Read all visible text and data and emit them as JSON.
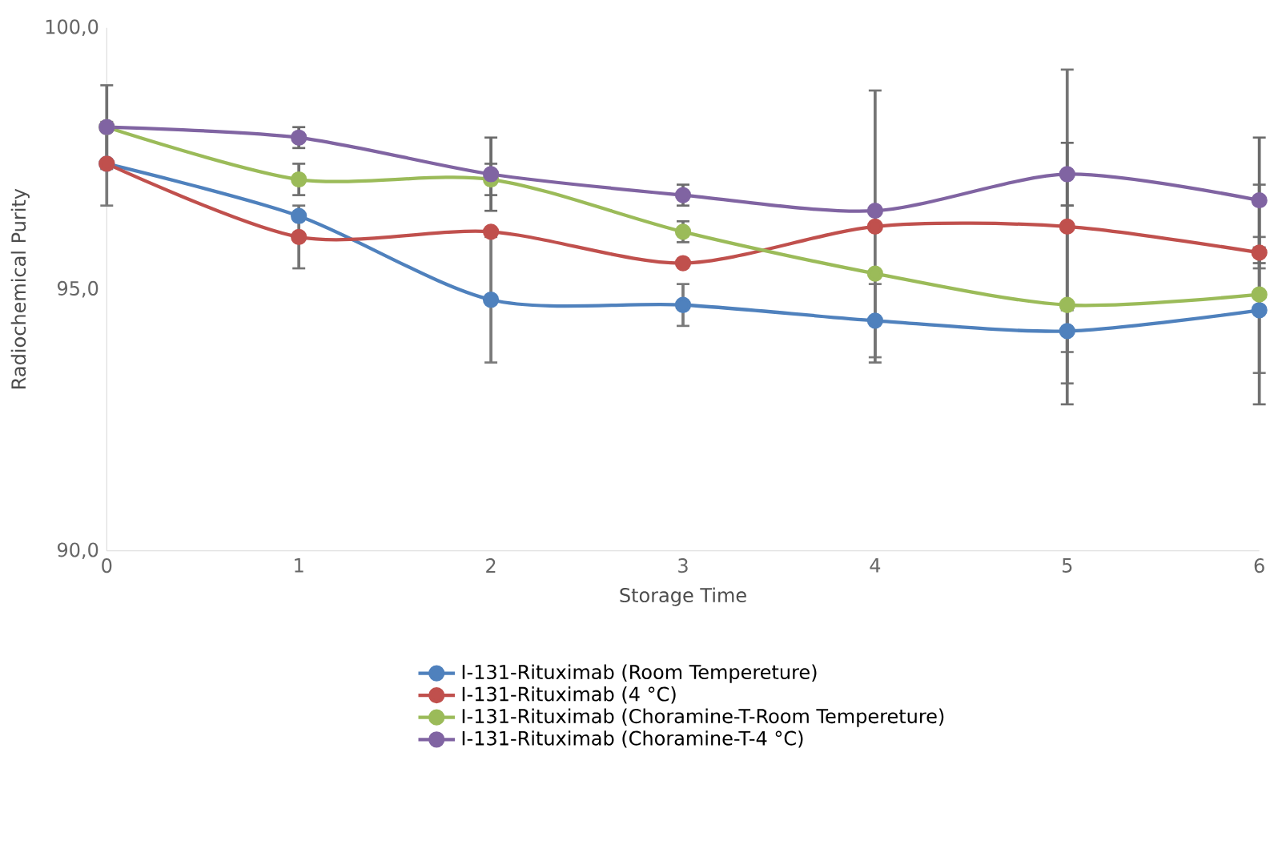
{
  "chart_data": {
    "type": "line",
    "xlabel": "Storage Time",
    "ylabel": "Radiochemical Purity",
    "x": [
      0,
      1,
      2,
      3,
      4,
      5,
      6
    ],
    "xlim": [
      0,
      6
    ],
    "xticks": [
      0,
      1,
      2,
      3,
      4,
      5,
      6
    ],
    "ylim": [
      90,
      100
    ],
    "yticks": [
      {
        "value": 90,
        "label": "90,0"
      },
      {
        "value": 95,
        "label": "95,0"
      },
      {
        "value": 100,
        "label": "100,0"
      }
    ],
    "grid": false,
    "legend": "bottom",
    "marker": "circle",
    "line_style": "solid",
    "series": [
      {
        "name": "I-131-Rituximab (Room Tempereture)",
        "color": "#4f81bd",
        "values": [
          97.4,
          96.4,
          94.8,
          94.7,
          94.4,
          94.2,
          94.6
        ],
        "errors": [
          0.8,
          null,
          1.2,
          0.4,
          0.7,
          0.4,
          1.2
        ]
      },
      {
        "name": "I-131-Rituximab (4 °C)",
        "color": "#c0504d",
        "values": [
          97.4,
          96.0,
          96.1,
          95.5,
          96.2,
          96.2,
          95.7
        ],
        "errors": [
          null,
          0.6,
          null,
          null,
          2.6,
          3.0,
          0.3
        ]
      },
      {
        "name": "I-131-Rituximab (Choramine-T-Room Tempereture)",
        "color": "#9bbb59",
        "values": [
          98.1,
          97.1,
          97.1,
          96.1,
          95.3,
          94.7,
          94.9
        ],
        "errors": [
          0.8,
          0.3,
          0.3,
          0.2,
          null,
          1.9,
          2.1
        ]
      },
      {
        "name": "I-131-Rituximab (Choramine-T-4 °C)",
        "color": "#8064a2",
        "values": [
          98.1,
          97.9,
          97.2,
          96.8,
          96.5,
          97.2,
          96.7
        ],
        "errors": [
          null,
          0.2,
          0.7,
          0.2,
          null,
          0.6,
          1.2
        ]
      }
    ]
  }
}
